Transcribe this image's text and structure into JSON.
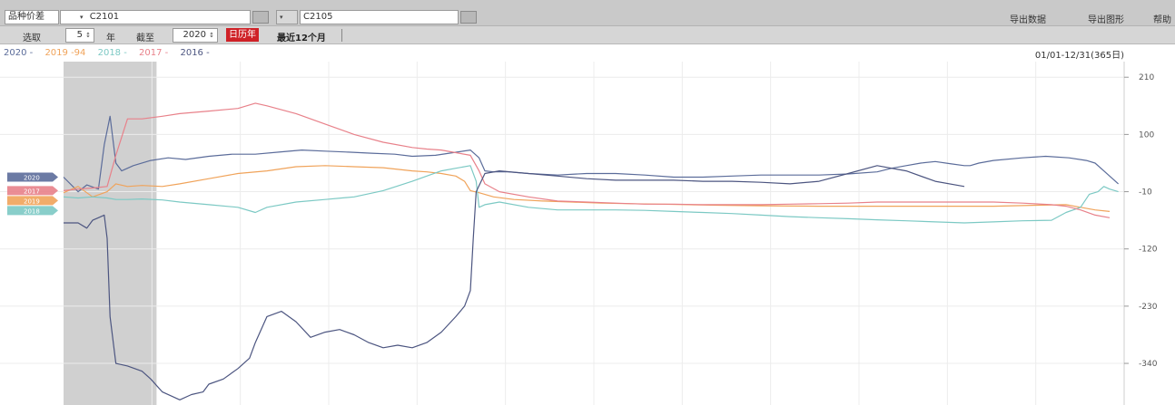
{
  "toolbar": {
    "variety_label": "品种价差",
    "contract1": "C2101",
    "contract2": "C2105",
    "export_data": "导出数据",
    "export_chart": "导出图形",
    "help": "帮助"
  },
  "controls": {
    "select_label": "选取",
    "years_value": "5",
    "year_unit": "年",
    "cutoff_label": "截至",
    "cutoff_value": "2020",
    "mode_button": "日历年",
    "recent_label": "最近12个月"
  },
  "date_range": "01/01-12/31(365日)",
  "chart_data": {
    "type": "line",
    "yticks": [
      210,
      100,
      -10,
      -120,
      -230,
      -340
    ],
    "ylim": [
      -420,
      240
    ],
    "x_domain": [
      0,
      365
    ],
    "grid": true,
    "legend_placement": "top-left",
    "shaded_region": [
      0,
      32
    ],
    "series": [
      {
        "name": "2020",
        "legend": "2020 -",
        "color": "#5b6c9a",
        "tag": "2020",
        "points": [
          [
            0,
            18
          ],
          [
            5,
            -10
          ],
          [
            8,
            3
          ],
          [
            12,
            -5
          ],
          [
            14,
            80
          ],
          [
            16,
            135
          ],
          [
            18,
            45
          ],
          [
            20,
            30
          ],
          [
            24,
            40
          ],
          [
            30,
            50
          ],
          [
            36,
            55
          ],
          [
            42,
            52
          ],
          [
            50,
            58
          ],
          [
            58,
            62
          ],
          [
            66,
            62
          ],
          [
            74,
            66
          ],
          [
            82,
            70
          ],
          [
            90,
            68
          ],
          [
            98,
            66
          ],
          [
            106,
            64
          ],
          [
            114,
            62
          ],
          [
            120,
            58
          ],
          [
            128,
            60
          ],
          [
            134,
            65
          ],
          [
            140,
            70
          ],
          [
            143,
            55
          ],
          [
            145,
            30
          ],
          [
            148,
            28
          ],
          [
            153,
            28
          ],
          [
            160,
            25
          ],
          [
            170,
            22
          ],
          [
            180,
            25
          ],
          [
            190,
            25
          ],
          [
            200,
            22
          ],
          [
            210,
            18
          ],
          [
            220,
            18
          ],
          [
            230,
            20
          ],
          [
            240,
            22
          ],
          [
            250,
            22
          ],
          [
            260,
            22
          ],
          [
            270,
            24
          ],
          [
            280,
            28
          ],
          [
            285,
            35
          ],
          [
            290,
            40
          ],
          [
            295,
            45
          ],
          [
            300,
            48
          ],
          [
            305,
            44
          ],
          [
            310,
            40
          ],
          [
            312,
            40
          ],
          [
            315,
            45
          ],
          [
            320,
            50
          ],
          [
            330,
            55
          ],
          [
            338,
            58
          ],
          [
            346,
            55
          ],
          [
            352,
            50
          ],
          [
            355,
            45
          ],
          [
            358,
            30
          ],
          [
            360,
            20
          ],
          [
            363,
            5
          ]
        ]
      },
      {
        "name": "2019 -94",
        "legend": "2019 -94",
        "color": "#f0a35a",
        "tag": "2019",
        "points": [
          [
            0,
            -12
          ],
          [
            5,
            0
          ],
          [
            10,
            -20
          ],
          [
            15,
            -10
          ],
          [
            18,
            5
          ],
          [
            22,
            0
          ],
          [
            27,
            2
          ],
          [
            34,
            0
          ],
          [
            40,
            5
          ],
          [
            50,
            15
          ],
          [
            60,
            25
          ],
          [
            70,
            30
          ],
          [
            80,
            38
          ],
          [
            90,
            40
          ],
          [
            100,
            38
          ],
          [
            110,
            36
          ],
          [
            120,
            30
          ],
          [
            125,
            28
          ],
          [
            130,
            25
          ],
          [
            135,
            20
          ],
          [
            138,
            10
          ],
          [
            140,
            -8
          ],
          [
            143,
            -12
          ],
          [
            148,
            -20
          ],
          [
            155,
            -25
          ],
          [
            165,
            -28
          ],
          [
            175,
            -30
          ],
          [
            185,
            -32
          ],
          [
            195,
            -33
          ],
          [
            205,
            -34
          ],
          [
            215,
            -35
          ],
          [
            225,
            -36
          ],
          [
            240,
            -37
          ],
          [
            260,
            -38
          ],
          [
            280,
            -38
          ],
          [
            300,
            -38
          ],
          [
            320,
            -38
          ],
          [
            335,
            -36
          ],
          [
            345,
            -35
          ],
          [
            350,
            -40
          ],
          [
            355,
            -45
          ],
          [
            360,
            -48
          ]
        ]
      },
      {
        "name": "2018",
        "legend": "2018 -",
        "color": "#7cc9c4",
        "tag": "2018",
        "points": [
          [
            0,
            -20
          ],
          [
            5,
            -22
          ],
          [
            10,
            -20
          ],
          [
            15,
            -22
          ],
          [
            18,
            -25
          ],
          [
            22,
            -25
          ],
          [
            27,
            -24
          ],
          [
            34,
            -26
          ],
          [
            40,
            -30
          ],
          [
            50,
            -35
          ],
          [
            60,
            -40
          ],
          [
            66,
            -50
          ],
          [
            70,
            -40
          ],
          [
            80,
            -30
          ],
          [
            90,
            -25
          ],
          [
            100,
            -20
          ],
          [
            110,
            -8
          ],
          [
            120,
            10
          ],
          [
            125,
            20
          ],
          [
            130,
            30
          ],
          [
            135,
            35
          ],
          [
            140,
            40
          ],
          [
            142,
            10
          ],
          [
            143,
            -40
          ],
          [
            145,
            -35
          ],
          [
            150,
            -30
          ],
          [
            160,
            -40
          ],
          [
            170,
            -45
          ],
          [
            180,
            -45
          ],
          [
            190,
            -45
          ],
          [
            200,
            -46
          ],
          [
            210,
            -48
          ],
          [
            220,
            -50
          ],
          [
            230,
            -52
          ],
          [
            240,
            -55
          ],
          [
            250,
            -58
          ],
          [
            260,
            -60
          ],
          [
            270,
            -62
          ],
          [
            280,
            -64
          ],
          [
            290,
            -66
          ],
          [
            300,
            -68
          ],
          [
            310,
            -70
          ],
          [
            320,
            -68
          ],
          [
            330,
            -66
          ],
          [
            340,
            -65
          ],
          [
            345,
            -50
          ],
          [
            350,
            -40
          ],
          [
            353,
            -15
          ],
          [
            356,
            -10
          ],
          [
            358,
            0
          ],
          [
            360,
            -5
          ],
          [
            363,
            -10
          ]
        ]
      },
      {
        "name": "2017",
        "legend": "2017 -",
        "color": "#e8818a",
        "tag": "2017",
        "points": [
          [
            0,
            -8
          ],
          [
            5,
            -5
          ],
          [
            10,
            -3
          ],
          [
            15,
            0
          ],
          [
            18,
            60
          ],
          [
            22,
            130
          ],
          [
            27,
            130
          ],
          [
            34,
            135
          ],
          [
            40,
            140
          ],
          [
            50,
            145
          ],
          [
            60,
            150
          ],
          [
            66,
            160
          ],
          [
            70,
            155
          ],
          [
            80,
            140
          ],
          [
            90,
            120
          ],
          [
            100,
            100
          ],
          [
            110,
            85
          ],
          [
            120,
            75
          ],
          [
            125,
            72
          ],
          [
            130,
            70
          ],
          [
            135,
            65
          ],
          [
            140,
            60
          ],
          [
            143,
            30
          ],
          [
            145,
            5
          ],
          [
            150,
            -10
          ],
          [
            160,
            -20
          ],
          [
            170,
            -28
          ],
          [
            180,
            -30
          ],
          [
            190,
            -32
          ],
          [
            200,
            -34
          ],
          [
            210,
            -34
          ],
          [
            220,
            -35
          ],
          [
            230,
            -35
          ],
          [
            240,
            -35
          ],
          [
            250,
            -34
          ],
          [
            260,
            -33
          ],
          [
            270,
            -32
          ],
          [
            280,
            -30
          ],
          [
            290,
            -30
          ],
          [
            300,
            -30
          ],
          [
            310,
            -30
          ],
          [
            320,
            -30
          ],
          [
            330,
            -32
          ],
          [
            340,
            -35
          ],
          [
            345,
            -38
          ],
          [
            350,
            -45
          ],
          [
            355,
            -55
          ],
          [
            360,
            -60
          ]
        ]
      },
      {
        "name": "2016",
        "legend": "2016 -",
        "color": "#4c5580",
        "tag": "",
        "points": [
          [
            0,
            -70
          ],
          [
            5,
            -70
          ],
          [
            8,
            -80
          ],
          [
            10,
            -65
          ],
          [
            12,
            -60
          ],
          [
            14,
            -55
          ],
          [
            15,
            -100
          ],
          [
            16,
            -250
          ],
          [
            18,
            -340
          ],
          [
            22,
            -345
          ],
          [
            27,
            -355
          ],
          [
            30,
            -370
          ],
          [
            34,
            -395
          ],
          [
            40,
            -410
          ],
          [
            44,
            -400
          ],
          [
            48,
            -395
          ],
          [
            50,
            -380
          ],
          [
            55,
            -370
          ],
          [
            60,
            -350
          ],
          [
            64,
            -330
          ],
          [
            66,
            -300
          ],
          [
            70,
            -250
          ],
          [
            75,
            -240
          ],
          [
            80,
            -260
          ],
          [
            85,
            -290
          ],
          [
            90,
            -280
          ],
          [
            95,
            -275
          ],
          [
            100,
            -285
          ],
          [
            105,
            -300
          ],
          [
            110,
            -310
          ],
          [
            115,
            -305
          ],
          [
            120,
            -310
          ],
          [
            125,
            -300
          ],
          [
            130,
            -280
          ],
          [
            135,
            -250
          ],
          [
            138,
            -230
          ],
          [
            140,
            -200
          ],
          [
            141,
            -100
          ],
          [
            142,
            -10
          ],
          [
            145,
            25
          ],
          [
            150,
            30
          ],
          [
            160,
            25
          ],
          [
            170,
            20
          ],
          [
            180,
            15
          ],
          [
            190,
            12
          ],
          [
            200,
            12
          ],
          [
            210,
            12
          ],
          [
            220,
            10
          ],
          [
            230,
            10
          ],
          [
            240,
            8
          ],
          [
            250,
            5
          ],
          [
            260,
            10
          ],
          [
            270,
            25
          ],
          [
            280,
            40
          ],
          [
            290,
            30
          ],
          [
            300,
            10
          ],
          [
            310,
            0
          ]
        ]
      }
    ]
  }
}
